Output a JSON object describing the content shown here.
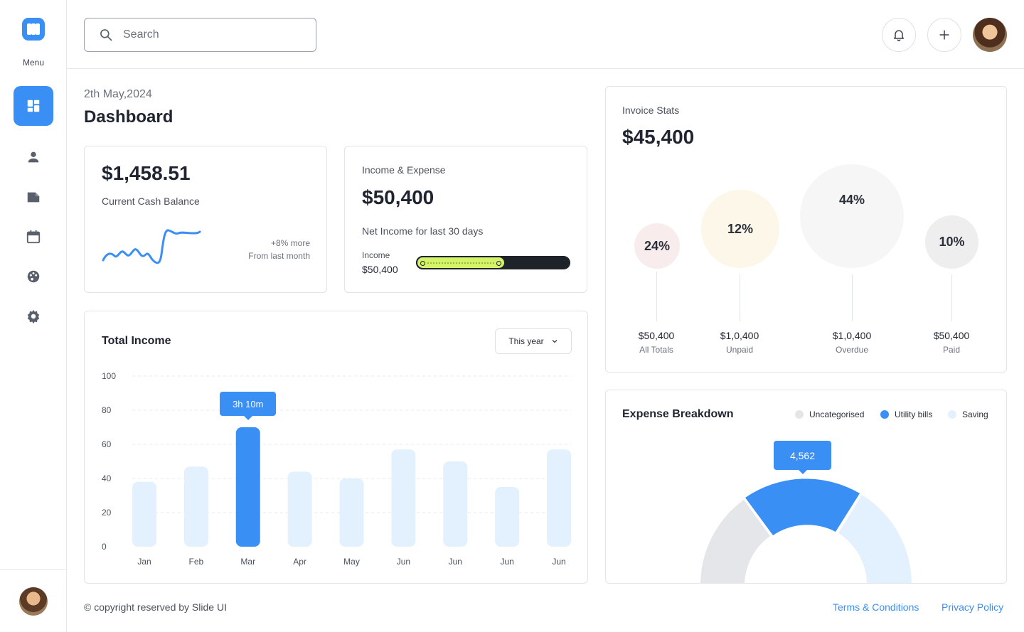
{
  "sidebar": {
    "menu_label": "Menu",
    "nav": [
      "dashboard",
      "user",
      "folder",
      "calendar",
      "palette",
      "settings"
    ]
  },
  "header": {
    "search_placeholder": "Search"
  },
  "page": {
    "date": "2th May,2024",
    "title": "Dashboard"
  },
  "cash": {
    "amount": "$1,458.51",
    "label": "Current Cash Balance",
    "change": "+8% more",
    "change_sub": "From last month"
  },
  "income_expense": {
    "title": "Income & Expense",
    "amount": "$50,400",
    "subtitle": "Net Income for last 30 days",
    "income_label": "Income",
    "income_value": "$50,400",
    "progress_fraction": 0.58
  },
  "total_income": {
    "title": "Total Income",
    "period": "This year"
  },
  "chart_data": {
    "type": "bar",
    "categories": [
      "Jan",
      "Feb",
      "Mar",
      "Apr",
      "May",
      "Jun",
      "Jun",
      "Jun",
      "Jun"
    ],
    "values": [
      38,
      47,
      70,
      44,
      40,
      57,
      50,
      35,
      57
    ],
    "highlight_index": 2,
    "highlight_tooltip": "3h 10m",
    "ylim": [
      0,
      100
    ],
    "yticks": [
      0,
      20,
      40,
      60,
      80,
      100
    ],
    "grid": true,
    "colors": {
      "bar": "#e3f0fd",
      "highlight": "#3a8ff5"
    }
  },
  "invoice": {
    "title": "Invoice Stats",
    "amount": "$45,400",
    "items": [
      {
        "percent": "24%",
        "value": "$50,400",
        "label": "All Totals",
        "color": "#f8ecec"
      },
      {
        "percent": "12%",
        "value": "$1,0,400",
        "label": "Unpaid",
        "color": "#fcf7e8"
      },
      {
        "percent": "44%",
        "value": "$1,0,400",
        "label": "Overdue",
        "color": "#f6f6f6"
      },
      {
        "percent": "10%",
        "value": "$50,400",
        "label": "Paid",
        "color": "#eeeeee"
      }
    ]
  },
  "expense": {
    "title": "Expense Breakdown",
    "legend": [
      {
        "label": "Uncategorised",
        "color": "#e4e6ea"
      },
      {
        "label": "Utility bills",
        "color": "#3a8ff5"
      },
      {
        "label": "Saving",
        "color": "#e3f0fd"
      }
    ],
    "tooltip": "4,562"
  },
  "footer": {
    "copyright": "© copyright reserved by Slide UI",
    "terms": "Terms & Conditions",
    "privacy": "Privacy Policy"
  }
}
